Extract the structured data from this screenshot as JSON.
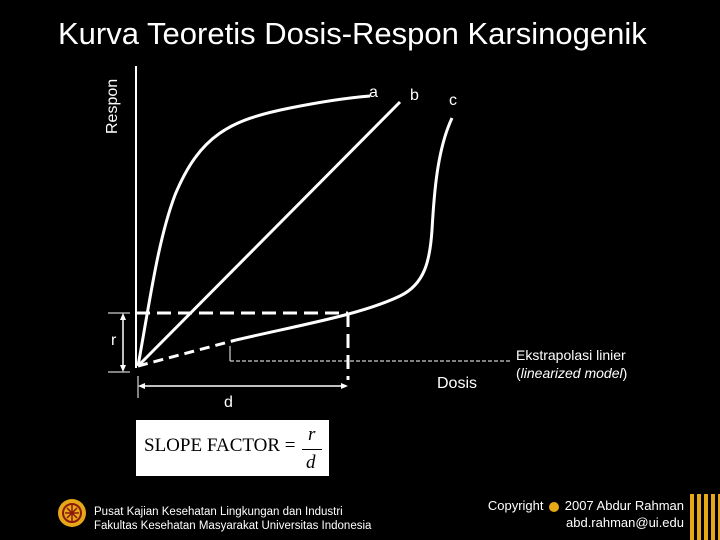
{
  "title": "Kurva Teoretis Dosis-Respon Karsinogenik",
  "y_axis_label": "Respon",
  "x_axis_label": "Dosis",
  "curve_labels": {
    "a": "a",
    "b": "b",
    "c": "c"
  },
  "r_label": "r",
  "d_label": "d",
  "extrapolation_note": {
    "line1": "Ekstrapolasi linier",
    "line2_open": "(",
    "line2_italic": "linearized model",
    "line2_close": ")"
  },
  "formula": {
    "lhs": "SLOPE FACTOR =",
    "numerator": "r",
    "denominator": "d"
  },
  "footer": {
    "institution_line1": "Pusat Kajian Kesehatan Lingkungan dan Industri",
    "institution_line2": "Fakultas Kesehatan Masyarakat Universitas Indonesia",
    "copyright_prefix": "Copyright",
    "copyright_suffix": "2007 Abdur Rahman",
    "email": "abd.rahman@ui.edu"
  },
  "colors": {
    "background": "#000000",
    "lines": "#ffffff",
    "formula_box": "#ffffff",
    "logo": "#e6a817"
  }
}
